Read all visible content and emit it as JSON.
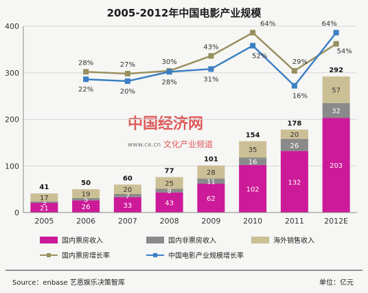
{
  "chart_data": {
    "type": "bar",
    "title": "2005-2012年中国电影产业规模",
    "categories": [
      "2005",
      "2006",
      "2007",
      "2008",
      "2009",
      "2010",
      "2011",
      "2012E"
    ],
    "ylim": [
      0,
      400
    ],
    "yticks": [
      0,
      100,
      200,
      300,
      400
    ],
    "grid": true,
    "stacked": true,
    "series": [
      {
        "name": "国内票房收入",
        "color": "#cc1a99",
        "values": [
          21,
          26,
          33,
          43,
          62,
          102,
          132,
          203
        ]
      },
      {
        "name": "国内非票房收入",
        "color": "#8a8a8a",
        "values": [
          3,
          5,
          7,
          8,
          11,
          16,
          26,
          32
        ]
      },
      {
        "name": "海外销售收入",
        "color": "#cbbf95",
        "values": [
          17,
          19,
          20,
          25,
          28,
          35,
          20,
          57
        ]
      }
    ],
    "totals": [
      41,
      50,
      60,
      77,
      101,
      154,
      178,
      292
    ],
    "lines": [
      {
        "name": "国内票房增长率",
        "color": "#998f5f",
        "marker": "square",
        "values": [
          null,
          302,
          298,
          304,
          336,
          386,
          304,
          362
        ],
        "labels": [
          null,
          "28%",
          "27%",
          "30%",
          "43%",
          "64%",
          "29%",
          "54%"
        ]
      },
      {
        "name": "中国电影产业规模增长率",
        "color": "#3b7fc4",
        "marker": "square",
        "values": [
          null,
          286,
          282,
          302,
          308,
          358,
          272,
          386
        ],
        "labels": [
          null,
          "22%",
          "20%",
          "28%",
          "31%",
          "52%",
          "16%",
          "64%"
        ]
      }
    ],
    "legend_position": "bottom"
  },
  "watermark": {
    "main": "中国经济网",
    "url": "www.ce.cn",
    "sub": "文化产业频道"
  },
  "footer": {
    "source": "Source：enbase 艺恩娱乐决策智库",
    "unit": "单位：亿元"
  }
}
